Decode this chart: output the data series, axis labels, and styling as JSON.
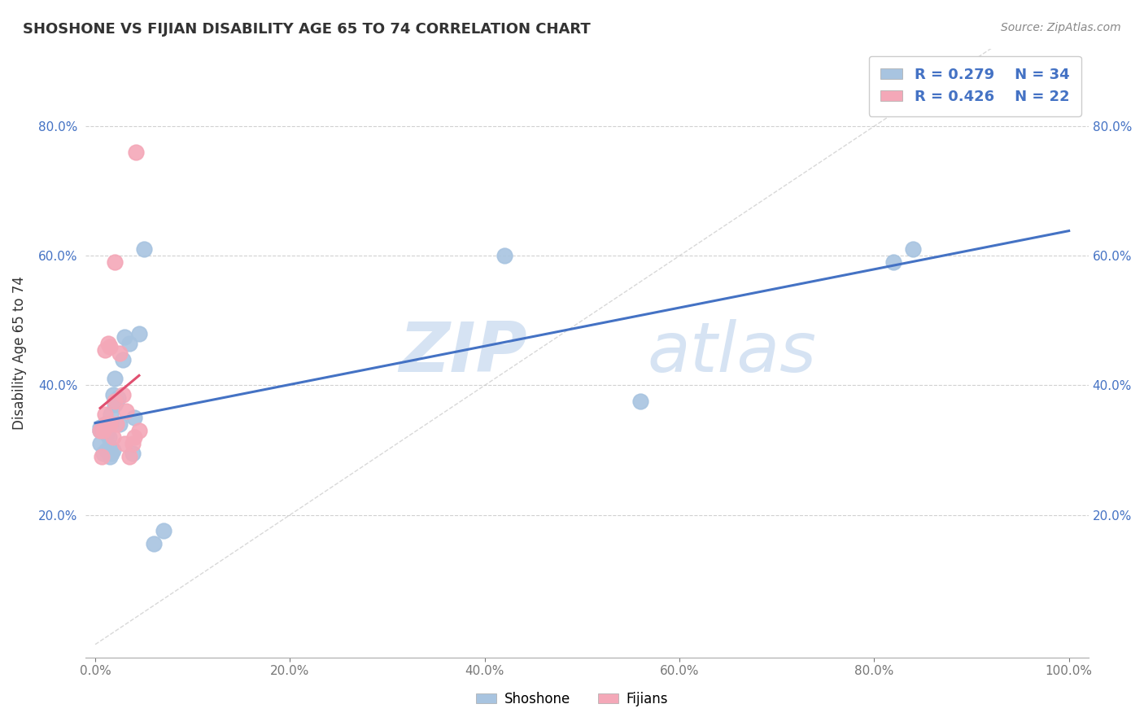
{
  "title": "SHOSHONE VS FIJIAN DISABILITY AGE 65 TO 74 CORRELATION CHART",
  "source_text": "Source: ZipAtlas.com",
  "ylabel": "Disability Age 65 to 74",
  "x_ticks": [
    0.0,
    0.2,
    0.4,
    0.6,
    0.8,
    1.0
  ],
  "x_tick_labels": [
    "0.0%",
    "20.0%",
    "40.0%",
    "60.0%",
    "80.0%",
    "100.0%"
  ],
  "y_ticks": [
    0.2,
    0.4,
    0.6,
    0.8
  ],
  "y_tick_labels": [
    "20.0%",
    "40.0%",
    "60.0%",
    "80.0%"
  ],
  "xlim": [
    -0.01,
    1.02
  ],
  "ylim": [
    -0.02,
    0.92
  ],
  "shoshone_R": 0.279,
  "shoshone_N": 34,
  "fijian_R": 0.426,
  "fijian_N": 22,
  "shoshone_color": "#a8c4e0",
  "fijian_color": "#f4a8b8",
  "shoshone_line_color": "#4472c4",
  "fijian_line_color": "#e05070",
  "watermark_zip": "ZIP",
  "watermark_atlas": "atlas",
  "shoshone_x": [
    0.005,
    0.005,
    0.005,
    0.008,
    0.01,
    0.01,
    0.012,
    0.012,
    0.013,
    0.014,
    0.015,
    0.015,
    0.016,
    0.017,
    0.018,
    0.018,
    0.02,
    0.02,
    0.022,
    0.023,
    0.025,
    0.028,
    0.03,
    0.035,
    0.038,
    0.04,
    0.045,
    0.05,
    0.06,
    0.07,
    0.42,
    0.56,
    0.82,
    0.84
  ],
  "shoshone_y": [
    0.335,
    0.33,
    0.31,
    0.295,
    0.335,
    0.34,
    0.3,
    0.325,
    0.3,
    0.32,
    0.29,
    0.305,
    0.355,
    0.295,
    0.3,
    0.385,
    0.37,
    0.41,
    0.375,
    0.38,
    0.34,
    0.44,
    0.475,
    0.465,
    0.295,
    0.35,
    0.48,
    0.61,
    0.155,
    0.175,
    0.6,
    0.375,
    0.59,
    0.61
  ],
  "fijian_x": [
    0.005,
    0.007,
    0.008,
    0.01,
    0.01,
    0.012,
    0.013,
    0.015,
    0.015,
    0.018,
    0.02,
    0.02,
    0.022,
    0.025,
    0.028,
    0.03,
    0.032,
    0.035,
    0.038,
    0.04,
    0.042,
    0.045
  ],
  "fijian_y": [
    0.33,
    0.29,
    0.33,
    0.355,
    0.455,
    0.34,
    0.465,
    0.34,
    0.46,
    0.32,
    0.375,
    0.59,
    0.34,
    0.45,
    0.385,
    0.31,
    0.36,
    0.29,
    0.31,
    0.32,
    0.76,
    0.33
  ]
}
